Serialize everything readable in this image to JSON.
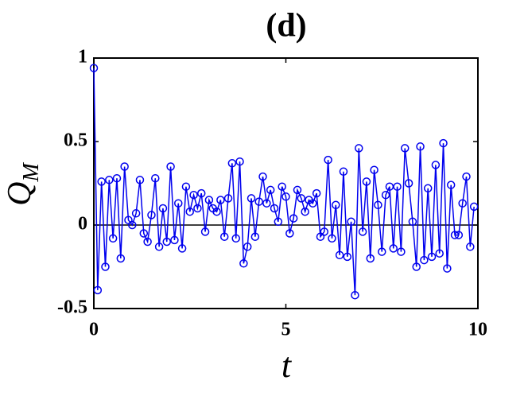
{
  "chart_data": {
    "type": "line",
    "title": "(d)",
    "xlabel": "t",
    "ylabel": "Q",
    "ylabel_sub": "M",
    "x": [
      0,
      0.1,
      0.2,
      0.3,
      0.4,
      0.5,
      0.6,
      0.7,
      0.8,
      0.9,
      1,
      1.1,
      1.2,
      1.3,
      1.4,
      1.5,
      1.6,
      1.7,
      1.8,
      1.9,
      2,
      2.1,
      2.2,
      2.3,
      2.4,
      2.5,
      2.6,
      2.7,
      2.8,
      2.9,
      3,
      3.1,
      3.2,
      3.3,
      3.4,
      3.5,
      3.6,
      3.7,
      3.8,
      3.9,
      4,
      4.1,
      4.2,
      4.3,
      4.4,
      4.5,
      4.6,
      4.7,
      4.8,
      4.9,
      5,
      5.1,
      5.2,
      5.3,
      5.4,
      5.5,
      5.6,
      5.7,
      5.8,
      5.9,
      6,
      6.1,
      6.2,
      6.3,
      6.4,
      6.5,
      6.6,
      6.7,
      6.8,
      6.9,
      7,
      7.1,
      7.2,
      7.3,
      7.4,
      7.5,
      7.6,
      7.7,
      7.8,
      7.9,
      8,
      8.1,
      8.2,
      8.3,
      8.4,
      8.5,
      8.6,
      8.7,
      8.8,
      8.9,
      9,
      9.1,
      9.2,
      9.3,
      9.4,
      9.5,
      9.6,
      9.7,
      9.8,
      9.9
    ],
    "series": [
      {
        "color": "#0000ee",
        "values": [
          0.94,
          -0.39,
          0.26,
          -0.25,
          0.27,
          -0.08,
          0.28,
          -0.2,
          0.35,
          0.03,
          0,
          0.07,
          0.27,
          -0.05,
          -0.1,
          0.06,
          0.28,
          -0.13,
          0.1,
          -0.1,
          0.35,
          -0.09,
          0.13,
          -0.14,
          0.23,
          0.08,
          0.18,
          0.1,
          0.19,
          -0.04,
          0.15,
          0.1,
          0.08,
          0.15,
          -0.07,
          0.16,
          0.37,
          -0.08,
          0.38,
          -0.23,
          -0.13,
          0.16,
          -0.07,
          0.14,
          0.29,
          0.13,
          0.21,
          0.1,
          0.02,
          0.23,
          0.17,
          -0.05,
          0.04,
          0.21,
          0.16,
          0.08,
          0.15,
          0.13,
          0.19,
          -0.07,
          -0.04,
          0.39,
          -0.08,
          0.12,
          -0.18,
          0.32,
          -0.19,
          0.02,
          -0.42,
          0.46,
          -0.04,
          0.26,
          -0.2,
          0.33,
          0.12,
          -0.16,
          0.18,
          0.23,
          -0.14,
          0.23,
          -0.16,
          0.46,
          0.25,
          0.02,
          -0.25,
          0.47,
          -0.21,
          0.22,
          -0.19,
          0.36,
          -0.17,
          0.49,
          -0.26,
          0.24,
          -0.06,
          -0.06,
          0.13,
          0.29,
          -0.13,
          0.11
        ]
      }
    ],
    "xlim": [
      0,
      10
    ],
    "xticks": [
      0,
      5,
      10
    ],
    "ylim": [
      -0.5,
      1
    ],
    "yticks": [
      -0.5,
      0,
      0.5,
      1
    ]
  }
}
